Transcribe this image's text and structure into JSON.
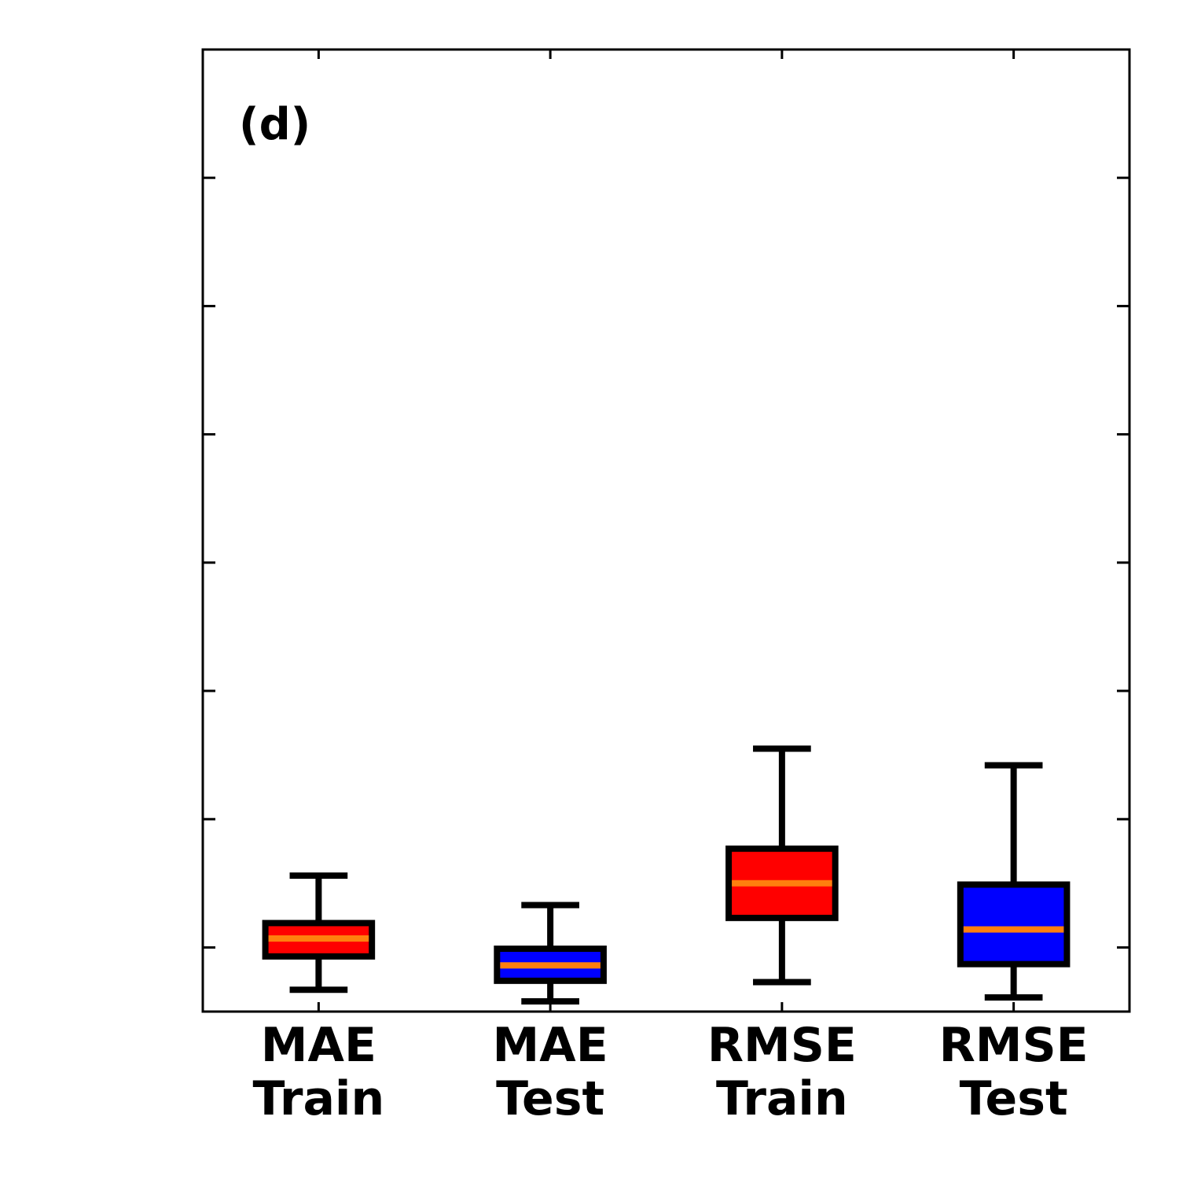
{
  "chart_data": {
    "type": "box",
    "panel_label": "(d)",
    "yticks_labeled": false,
    "ylim": [
      0,
      7.5
    ],
    "ytick_values": [
      0.5,
      1.5,
      2.5,
      3.5,
      4.5,
      5.5,
      6.5
    ],
    "categories": [
      {
        "line1": "MAE",
        "line2": "Train",
        "fill": "#ff0000",
        "whisker_low": 0.17,
        "q1": 0.43,
        "median": 0.57,
        "q3": 0.69,
        "whisker_high": 1.06
      },
      {
        "line1": "MAE",
        "line2": "Test",
        "fill": "#0000ff",
        "whisker_low": 0.08,
        "q1": 0.24,
        "median": 0.36,
        "q3": 0.49,
        "whisker_high": 0.83
      },
      {
        "line1": "RMSE",
        "line2": "Train",
        "fill": "#ff0000",
        "whisker_low": 0.23,
        "q1": 0.73,
        "median": 1.0,
        "q3": 1.27,
        "whisker_high": 2.05
      },
      {
        "line1": "RMSE",
        "line2": "Test",
        "fill": "#0000ff",
        "whisker_low": 0.11,
        "q1": 0.37,
        "median": 0.64,
        "q3": 0.99,
        "whisker_high": 1.92
      }
    ],
    "median_color": "#ff7f0e",
    "edge_color": "#000000"
  }
}
